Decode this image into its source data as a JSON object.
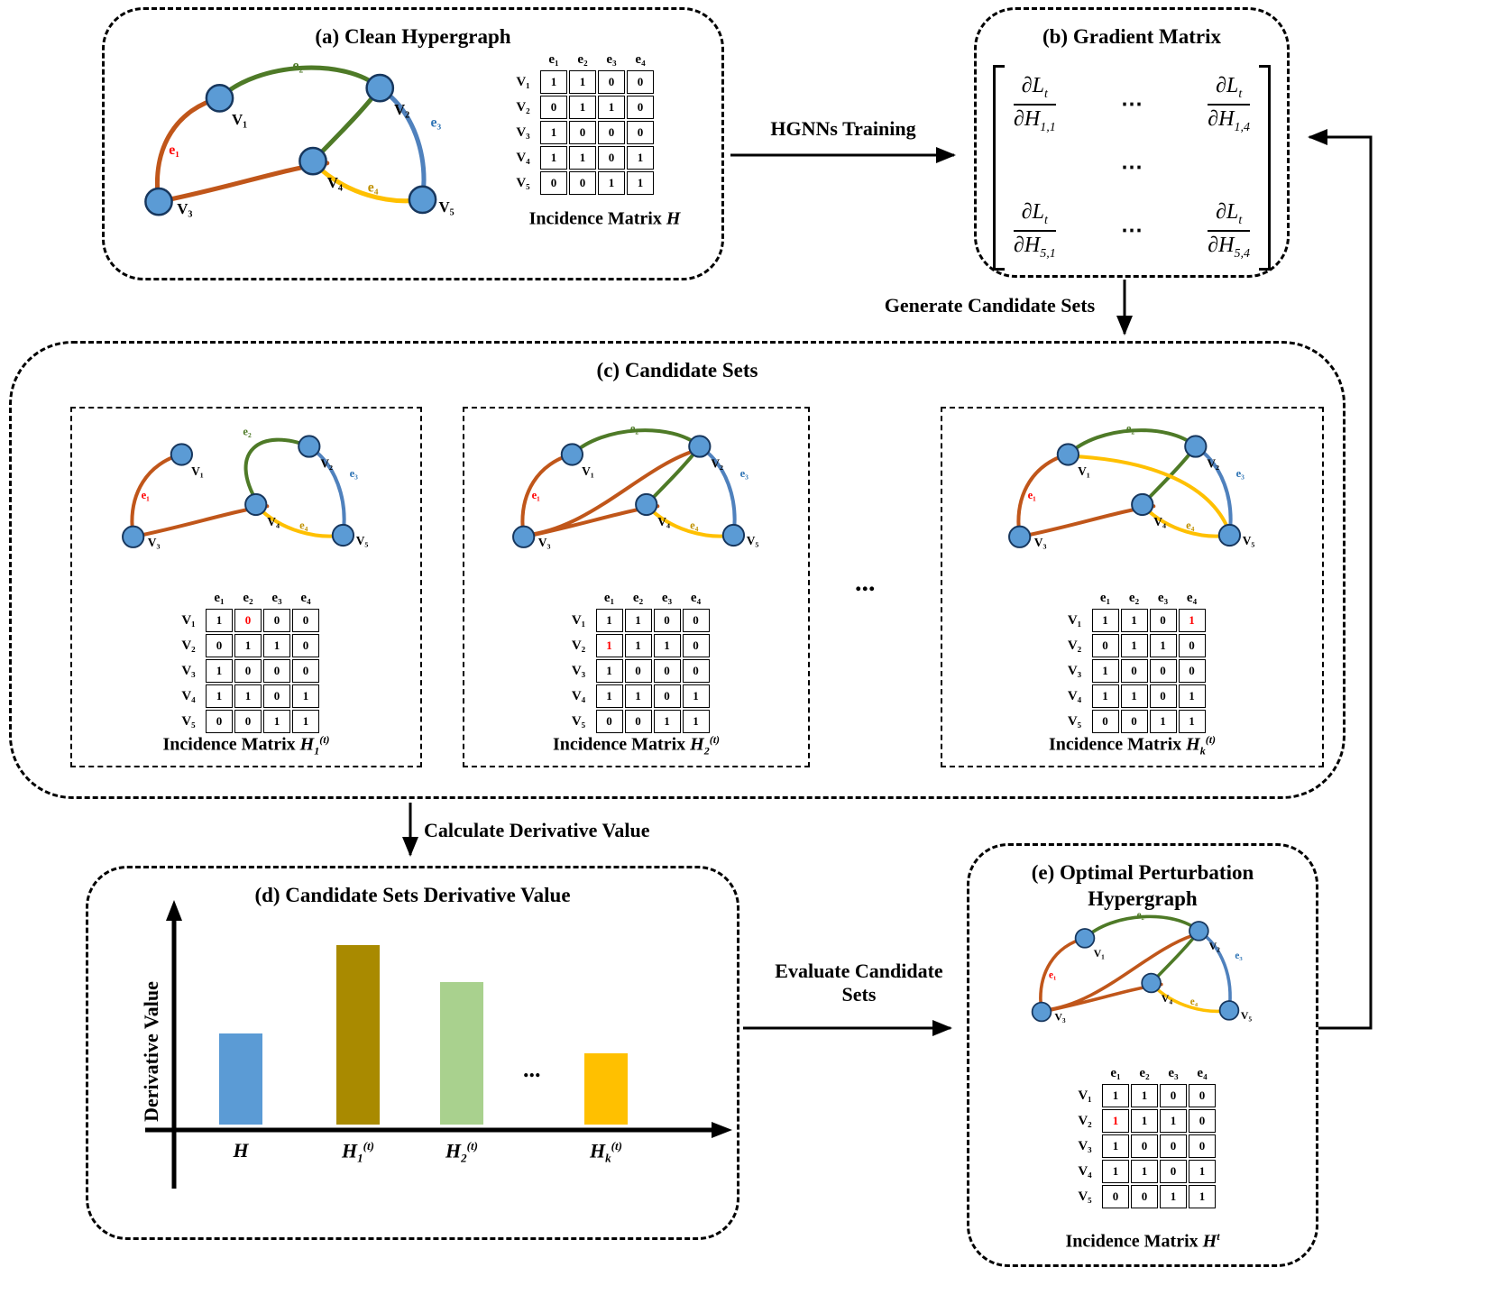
{
  "panels": {
    "a": {
      "title": "(a) Clean Hypergraph"
    },
    "b": {
      "title": "(b) Gradient Matrix"
    },
    "c": {
      "title": "(c) Candidate Sets",
      "ellipsis": "..."
    },
    "e": {
      "title": "(e) Optimal Perturbation Hypergraph"
    }
  },
  "arrows": {
    "train": "HGNNs Training",
    "generate": "Generate Candidate Sets",
    "calculate": "Calculate Derivative Value",
    "evaluate_line1": "Evaluate Candidate",
    "evaluate_line2": "Sets"
  },
  "glabels": {
    "v1": "V₁",
    "v2": "V₂",
    "v3": "V₃",
    "v4": "V₄",
    "v5": "V₅",
    "e1": "e₁",
    "e2": "e₂",
    "e3": "e₃",
    "e4": "e₄"
  },
  "colors": {
    "node_fill": "#5B9BD5",
    "node_stroke": "#17375E",
    "e1": "#C0561A",
    "e2": "#4E7A27",
    "e3": "#4F81BD",
    "e4": "#FFC000",
    "label_e1": "#FF0000",
    "label_e2": "#4E7A27",
    "label_e3": "#2E74B5",
    "label_e4": "#BF9000",
    "highlight": "#FF0000"
  },
  "matrices": {
    "a": {
      "cols": [
        "e₁",
        "e₂",
        "e₃",
        "e₄"
      ],
      "rows": [
        "V₁",
        "V₂",
        "V₃",
        "V₄",
        "V₅"
      ],
      "values": [
        [
          "1",
          "1",
          "0",
          "0"
        ],
        [
          "0",
          "1",
          "1",
          "0"
        ],
        [
          "1",
          "0",
          "0",
          "0"
        ],
        [
          "1",
          "1",
          "0",
          "1"
        ],
        [
          "0",
          "0",
          "1",
          "1"
        ]
      ],
      "highlights": []
    },
    "c1": {
      "cols": [
        "e₁",
        "e₂",
        "e₃",
        "e₄"
      ],
      "rows": [
        "V₁",
        "V₂",
        "V₃",
        "V₄",
        "V₅"
      ],
      "values": [
        [
          "1",
          "0",
          "0",
          "0"
        ],
        [
          "0",
          "1",
          "1",
          "0"
        ],
        [
          "1",
          "0",
          "0",
          "0"
        ],
        [
          "1",
          "1",
          "0",
          "1"
        ],
        [
          "0",
          "0",
          "1",
          "1"
        ]
      ],
      "highlights": [
        [
          0,
          1
        ]
      ]
    },
    "c2": {
      "cols": [
        "e₁",
        "e₂",
        "e₃",
        "e₄"
      ],
      "rows": [
        "V₁",
        "V₂",
        "V₃",
        "V₄",
        "V₅"
      ],
      "values": [
        [
          "1",
          "1",
          "0",
          "0"
        ],
        [
          "1",
          "1",
          "1",
          "0"
        ],
        [
          "1",
          "0",
          "0",
          "0"
        ],
        [
          "1",
          "1",
          "0",
          "1"
        ],
        [
          "0",
          "0",
          "1",
          "1"
        ]
      ],
      "highlights": [
        [
          1,
          0
        ]
      ]
    },
    "ck": {
      "cols": [
        "e₁",
        "e₂",
        "e₃",
        "e₄"
      ],
      "rows": [
        "V₁",
        "V₂",
        "V₃",
        "V₄",
        "V₅"
      ],
      "values": [
        [
          "1",
          "1",
          "0",
          "1"
        ],
        [
          "0",
          "1",
          "1",
          "0"
        ],
        [
          "1",
          "0",
          "0",
          "0"
        ],
        [
          "1",
          "1",
          "0",
          "1"
        ],
        [
          "0",
          "0",
          "1",
          "1"
        ]
      ],
      "highlights": [
        [
          0,
          3
        ]
      ]
    },
    "e": {
      "cols": [
        "e₁",
        "e₂",
        "e₃",
        "e₄"
      ],
      "rows": [
        "V₁",
        "V₂",
        "V₃",
        "V₄",
        "V₅"
      ],
      "values": [
        [
          "1",
          "1",
          "0",
          "0"
        ],
        [
          "1",
          "1",
          "1",
          "0"
        ],
        [
          "1",
          "0",
          "0",
          "0"
        ],
        [
          "1",
          "1",
          "0",
          "1"
        ],
        [
          "0",
          "0",
          "1",
          "1"
        ]
      ],
      "highlights": [
        [
          1,
          0
        ]
      ]
    }
  },
  "captions": {
    "a": {
      "prefix": "Incidence Matrix ",
      "base": "H",
      "sub": "",
      "sup": ""
    },
    "c1": {
      "prefix": "Incidence Matrix ",
      "base": "H",
      "sub": "1",
      "sup": "(t)"
    },
    "c2": {
      "prefix": "Incidence Matrix ",
      "base": "H",
      "sub": "2",
      "sup": "(t)"
    },
    "ck": {
      "prefix": "Incidence Matrix ",
      "base": "H",
      "sub": "k",
      "sup": "(t)"
    },
    "e": {
      "prefix": "Incidence Matrix ",
      "base": "H",
      "sub": "",
      "sup": "t"
    }
  },
  "gradient": {
    "tl": {
      "num_base": "∂L",
      "num_sub": "t",
      "den_base": "∂H",
      "den_sub": "1,1"
    },
    "tr": {
      "num_base": "∂L",
      "num_sub": "t",
      "den_base": "∂H",
      "den_sub": "1,4"
    },
    "bl": {
      "num_base": "∂L",
      "num_sub": "t",
      "den_base": "∂H",
      "den_sub": "5,1"
    },
    "br": {
      "num_base": "∂L",
      "num_sub": "t",
      "den_base": "∂H",
      "den_sub": "5,4"
    },
    "dots_row_top": "⋯",
    "dots_center": "⋯",
    "dots_row_bottom": "⋯"
  },
  "chart_data": {
    "type": "bar",
    "title": "(d) Candidate Sets Derivative Value",
    "ylabel": "Derivative Value",
    "categories": [
      {
        "base": "H",
        "sub": "",
        "sup": ""
      },
      {
        "base": "H",
        "sub": "1",
        "sup": "(t)"
      },
      {
        "base": "H",
        "sub": "2",
        "sup": "(t)"
      },
      {
        "base": "H",
        "sub": "k",
        "sup": "(t)"
      }
    ],
    "values": [
      0.42,
      0.83,
      0.66,
      0.33
    ],
    "colors": [
      "#5B9BD5",
      "#A98A00",
      "#A9D18E",
      "#FFC000"
    ],
    "ylim": [
      0,
      1
    ],
    "grid": false,
    "ellipsis": "..."
  }
}
